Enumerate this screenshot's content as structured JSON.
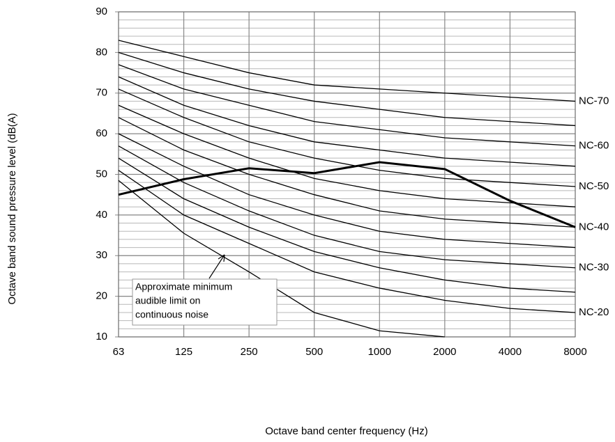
{
  "chart_data": {
    "type": "line",
    "xlabel": "Octave band center frequency (Hz)",
    "ylabel": "Octave band sound pressure level (dB(A)",
    "categories": [
      "63",
      "125",
      "250",
      "500",
      "1000",
      "2000",
      "4000",
      "8000"
    ],
    "ylim": [
      10,
      90
    ],
    "yticks": [
      10,
      20,
      30,
      40,
      50,
      60,
      70,
      80,
      90
    ],
    "minor_grid_step": 2,
    "grid": true,
    "series": [
      {
        "name": "NC-70",
        "color": "#000000",
        "values": [
          83,
          79,
          75,
          72,
          71,
          70,
          69,
          68
        ]
      },
      {
        "color": "#000000",
        "values": [
          80,
          75,
          71,
          68,
          66,
          64,
          63,
          62
        ]
      },
      {
        "name": "NC-60",
        "color": "#000000",
        "values": [
          77,
          71,
          67,
          63,
          61,
          59,
          58,
          57
        ]
      },
      {
        "color": "#000000",
        "values": [
          74,
          67,
          62,
          58,
          56,
          54,
          53,
          52
        ]
      },
      {
        "name": "NC-50",
        "color": "#000000",
        "values": [
          71,
          64,
          58,
          54,
          51,
          49,
          48,
          47
        ]
      },
      {
        "color": "#000000",
        "values": [
          67,
          60,
          54,
          49,
          46,
          44,
          43,
          42
        ]
      },
      {
        "name": "NC-40",
        "color": "#000000",
        "values": [
          64,
          56,
          50,
          45,
          41,
          39,
          38,
          37
        ]
      },
      {
        "color": "#000000",
        "values": [
          60,
          52,
          45,
          40,
          36,
          34,
          33,
          32
        ]
      },
      {
        "name": "NC-30",
        "color": "#000000",
        "values": [
          57,
          48,
          41,
          35,
          31,
          29,
          28,
          27
        ]
      },
      {
        "color": "#000000",
        "values": [
          54,
          44,
          37,
          31,
          27,
          24,
          22,
          21
        ]
      },
      {
        "name": "NC-20",
        "color": "#000000",
        "values": [
          51,
          40,
          33,
          26,
          22,
          19,
          17,
          16
        ]
      },
      {
        "color": "#000000",
        "values": [
          48.5,
          35.5,
          26,
          16,
          11.5,
          10,
          null,
          null
        ]
      },
      {
        "color": "#000000",
        "bold": true,
        "values": [
          45,
          48.8,
          51.5,
          50.3,
          53,
          51.3,
          43.5,
          37
        ]
      }
    ],
    "annotation": {
      "lines": [
        "Approximate minimum",
        "audible limit on",
        "continuous noise"
      ]
    }
  }
}
